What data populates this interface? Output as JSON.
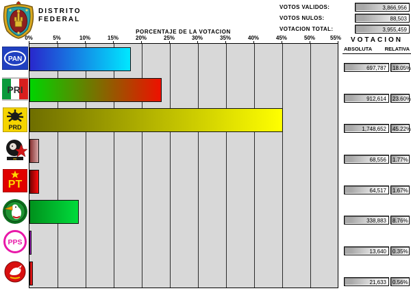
{
  "header": {
    "district_line1": "DISTRITO",
    "district_line2": "FEDERAL",
    "crest_icon": "mexico-city-coat-of-arms",
    "stats": [
      {
        "label": "VOTOS VALIDOS:",
        "value": "3,866,956"
      },
      {
        "label": "VOTOS NULOS:",
        "value": "88,503"
      },
      {
        "label": "VOTACION TOTAL:",
        "value": "3,955,459"
      }
    ]
  },
  "chart_data": {
    "type": "bar",
    "orientation": "horizontal",
    "title": "PORCENTAJE DE LA VOTACION",
    "xlabel": "",
    "ylabel": "",
    "xlim": [
      0,
      55
    ],
    "grid": true,
    "axis_ticks": [
      "0%",
      "5%",
      "10%",
      "15%",
      "20%",
      "25%",
      "30%",
      "35%",
      "40%",
      "45%",
      "50%",
      "55%"
    ],
    "categories": [
      "PAN",
      "PRI",
      "PRD",
      "PC",
      "PT",
      "PVEM",
      "PPS",
      "PDM"
    ],
    "values": [
      18.05,
      23.6,
      45.22,
      1.77,
      1.67,
      8.76,
      0.35,
      0.56
    ],
    "plot_bg": "#d8d8d8"
  },
  "results_panel": {
    "title": "VOTACION",
    "col_absoluta": "ABSOLUTA",
    "col_relativa": "RELATIVA"
  },
  "parties": [
    {
      "name": "PAN",
      "logo_icon": "pan-party-logo",
      "absoluta": "697,787",
      "relativa": "18.05%",
      "pct": 18.05,
      "bar_colors": [
        "#2828cc",
        "#00e8ff"
      ]
    },
    {
      "name": "PRI",
      "logo_icon": "pri-party-logo",
      "absoluta": "912,614",
      "relativa": "23.60%",
      "pct": 23.6,
      "bar_colors": [
        "#00d400",
        "#ee1000"
      ]
    },
    {
      "name": "PRD",
      "logo_icon": "prd-party-logo",
      "absoluta": "1,748,652",
      "relativa": "45.22%",
      "pct": 45.22,
      "bar_colors": [
        "#6e6e00",
        "#ffff00"
      ]
    },
    {
      "name": "PC",
      "logo_icon": "cardenista-party-logo",
      "absoluta": "68,556",
      "relativa": "1.77%",
      "pct": 1.77,
      "bar_colors": [
        "#8a3434",
        "#d6a4a4"
      ]
    },
    {
      "name": "PT",
      "logo_icon": "pt-party-logo",
      "absoluta": "64,517",
      "relativa": "1.67%",
      "pct": 1.67,
      "bar_colors": [
        "#7a0000",
        "#ff0e0e"
      ]
    },
    {
      "name": "PVEM",
      "logo_icon": "pvem-party-logo",
      "absoluta": "338,883",
      "relativa": "8.76%",
      "pct": 8.76,
      "bar_colors": [
        "#00911c",
        "#00dc3c"
      ]
    },
    {
      "name": "PPS",
      "logo_icon": "pps-party-logo",
      "absoluta": "13,640",
      "relativa": "0.35%",
      "pct": 0.35,
      "bar_colors": [
        "#9c00c4",
        "#c43ce6"
      ]
    },
    {
      "name": "PDM",
      "logo_icon": "pdm-party-logo",
      "absoluta": "21,633",
      "relativa": "0.56%",
      "pct": 0.56,
      "bar_colors": [
        "#c40000",
        "#e22222"
      ]
    }
  ]
}
